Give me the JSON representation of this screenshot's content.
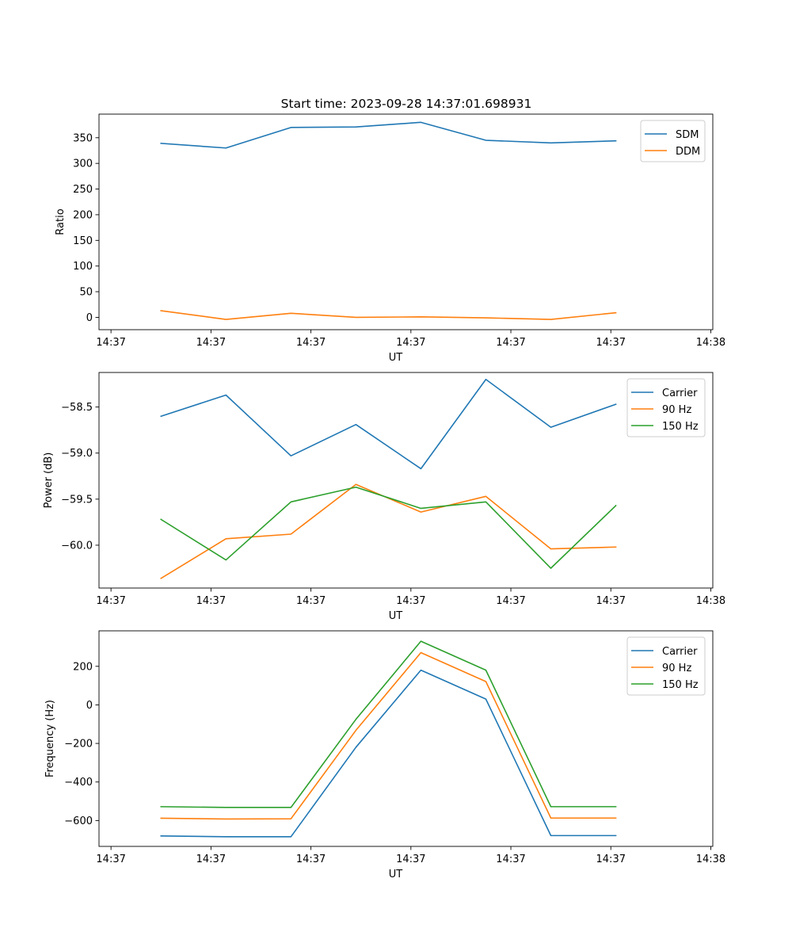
{
  "figure": {
    "title": "Start time: 2023-09-28 14:37:01.698931"
  },
  "chart_data": [
    {
      "type": "line",
      "title": "Start time: 2023-09-28 14:37:01.698931",
      "xlabel": "UT",
      "ylabel": "Ratio",
      "x_tick_labels": [
        "14:37",
        "14:37",
        "14:37",
        "14:37",
        "14:37",
        "14:37",
        "14:38"
      ],
      "x_ticks": [
        0,
        1,
        2,
        3,
        4,
        5,
        6
      ],
      "xlim": [
        -0.12,
        6.02
      ],
      "x": [
        0.5,
        1.15,
        1.8,
        2.45,
        3.1,
        3.75,
        4.4,
        5.05
      ],
      "ylim": [
        -24,
        396
      ],
      "y_ticks": [
        0,
        50,
        100,
        150,
        200,
        250,
        300,
        350
      ],
      "y_tick_labels": [
        "0",
        "50",
        "100",
        "150",
        "200",
        "250",
        "300",
        "350"
      ],
      "legend_position": "top-right",
      "series": [
        {
          "name": "SDM",
          "color": "#1f77b4",
          "values": [
            339,
            330,
            370,
            371,
            380,
            345,
            340,
            344
          ]
        },
        {
          "name": "DDM",
          "color": "#ff7f0e",
          "values": [
            13,
            -4,
            8,
            0,
            1,
            -1,
            -4,
            9
          ]
        }
      ]
    },
    {
      "type": "line",
      "title": "",
      "xlabel": "UT",
      "ylabel": "Power (dB)",
      "x_tick_labels": [
        "14:37",
        "14:37",
        "14:37",
        "14:37",
        "14:37",
        "14:37",
        "14:38"
      ],
      "x_ticks": [
        0,
        1,
        2,
        3,
        4,
        5,
        6
      ],
      "xlim": [
        -0.12,
        6.02
      ],
      "x": [
        0.5,
        1.15,
        1.8,
        2.45,
        3.1,
        3.75,
        4.4,
        5.05
      ],
      "ylim": [
        -60.465,
        -58.125
      ],
      "y_ticks": [
        -60.0,
        -59.5,
        -59.0,
        -58.5
      ],
      "y_tick_labels": [
        "−60.0",
        "−59.5",
        "−59.0",
        "−58.5"
      ],
      "legend_position": "top-right",
      "series": [
        {
          "name": "Carrier",
          "color": "#1f77b4",
          "values": [
            -58.6,
            -58.37,
            -59.03,
            -58.69,
            -59.17,
            -58.2,
            -58.72,
            -58.47
          ]
        },
        {
          "name": "90 Hz",
          "color": "#ff7f0e",
          "values": [
            -60.36,
            -59.93,
            -59.88,
            -59.34,
            -59.64,
            -59.47,
            -60.04,
            -60.02
          ]
        },
        {
          "name": "150 Hz",
          "color": "#2ca02c",
          "values": [
            -59.72,
            -60.16,
            -59.53,
            -59.37,
            -59.6,
            -59.53,
            -60.25,
            -59.57
          ]
        }
      ]
    },
    {
      "type": "line",
      "title": "",
      "xlabel": "UT",
      "ylabel": "Frequency (Hz)",
      "x_tick_labels": [
        "14:37",
        "14:37",
        "14:37",
        "14:37",
        "14:37",
        "14:37",
        "14:38"
      ],
      "x_ticks": [
        0,
        1,
        2,
        3,
        4,
        5,
        6
      ],
      "xlim": [
        -0.12,
        6.02
      ],
      "x": [
        0.5,
        1.15,
        1.8,
        2.45,
        3.1,
        3.75,
        4.4,
        5.05
      ],
      "ylim": [
        -734,
        384
      ],
      "y_ticks": [
        -600,
        -400,
        -200,
        0,
        200
      ],
      "y_tick_labels": [
        "−600",
        "−400",
        "−200",
        "0",
        "200"
      ],
      "legend_position": "top-right",
      "series": [
        {
          "name": "Carrier",
          "color": "#1f77b4",
          "values": [
            -680,
            -684,
            -684,
            -220,
            180,
            30,
            -678,
            -678
          ]
        },
        {
          "name": "90 Hz",
          "color": "#ff7f0e",
          "values": [
            -588,
            -592,
            -591,
            -132,
            271,
            121,
            -587,
            -587
          ]
        },
        {
          "name": "150 Hz",
          "color": "#2ca02c",
          "values": [
            -528,
            -532,
            -532,
            -75,
            330,
            180,
            -528,
            -528
          ]
        }
      ]
    }
  ]
}
